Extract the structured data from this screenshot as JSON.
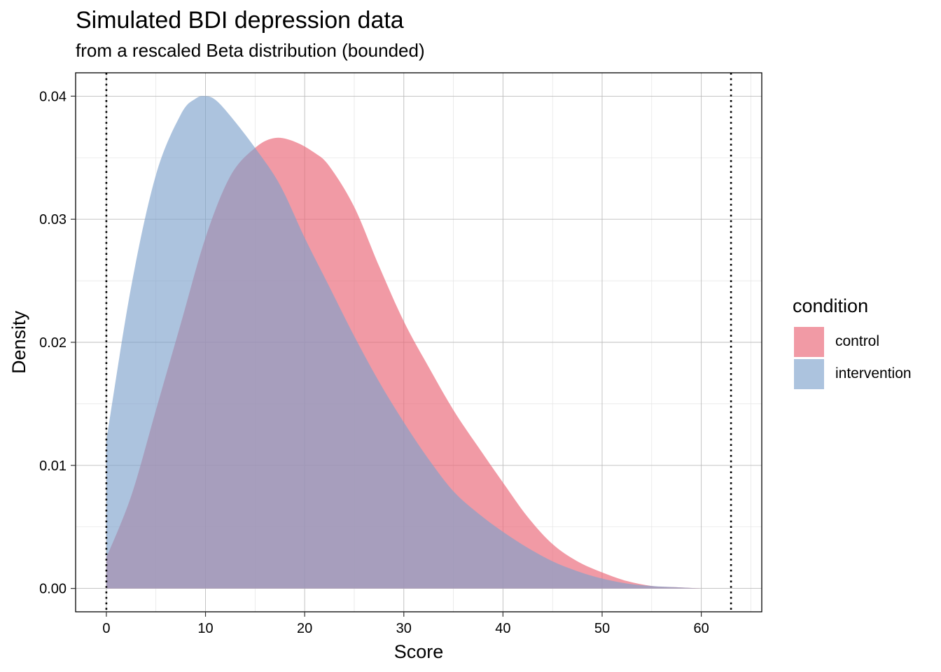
{
  "chart_data": {
    "type": "area",
    "title": "Simulated BDI depression data",
    "subtitle": "from a rescaled Beta distribution (bounded)",
    "xlabel": "Score",
    "ylabel": "Density",
    "xlim": [
      -3.1,
      66.1
    ],
    "ylim": [
      -0.0019,
      0.0419
    ],
    "x_ticks": [
      0,
      10,
      20,
      30,
      40,
      50,
      60
    ],
    "x_tick_labels": [
      "0",
      "10",
      "20",
      "30",
      "40",
      "50",
      "60"
    ],
    "y_ticks": [
      0,
      0.01,
      0.02,
      0.03,
      0.04
    ],
    "y_tick_labels": [
      "0.00",
      "0.01",
      "0.02",
      "0.03",
      "0.04"
    ],
    "vlines": [
      0,
      63
    ],
    "grid": true,
    "legend": {
      "title": "condition",
      "position": "right"
    },
    "series": [
      {
        "name": "control",
        "color": "#EA6A7B",
        "opacity": 0.68,
        "x": [
          0,
          2.5,
          5,
          7.5,
          10,
          12.5,
          15,
          17,
          19,
          21,
          22.5,
          25,
          27.5,
          30,
          32.5,
          35,
          37.5,
          40,
          42.5,
          45,
          47.5,
          50,
          52.5,
          55,
          57.5,
          60
        ],
        "y": [
          0.0025,
          0.0075,
          0.0145,
          0.0215,
          0.0285,
          0.0335,
          0.0358,
          0.0366,
          0.0363,
          0.0354,
          0.0343,
          0.031,
          0.0262,
          0.0217,
          0.018,
          0.0145,
          0.0115,
          0.0086,
          0.0058,
          0.0036,
          0.0022,
          0.0013,
          0.0006,
          0.0002,
          0.0001,
          0.0
        ]
      },
      {
        "name": "intervention",
        "color": "#7DA1CB",
        "opacity": 0.64,
        "x": [
          0,
          2.5,
          5,
          7.5,
          9,
          10,
          11,
          12.5,
          15,
          17.5,
          20,
          22.5,
          25,
          27.5,
          30,
          32.5,
          35,
          37.5,
          40,
          42.5,
          45,
          47.5,
          50,
          52.5,
          55,
          57.5,
          60
        ],
        "y": [
          0.012,
          0.0245,
          0.0336,
          0.0385,
          0.0398,
          0.04,
          0.0397,
          0.0384,
          0.0358,
          0.0328,
          0.0285,
          0.0245,
          0.0205,
          0.0168,
          0.0135,
          0.0105,
          0.0079,
          0.0061,
          0.0046,
          0.0033,
          0.0022,
          0.0014,
          0.0008,
          0.0004,
          0.0002,
          0.0001,
          0.0
        ]
      }
    ]
  }
}
